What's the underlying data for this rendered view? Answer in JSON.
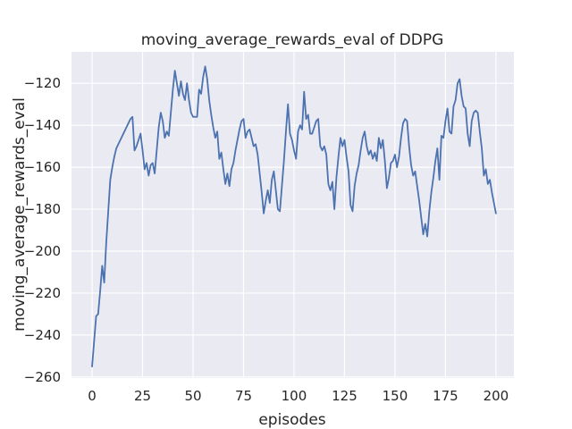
{
  "chart_data": {
    "type": "line",
    "title": "moving_average_rewards_eval of DDPG",
    "xlabel": "episodes",
    "ylabel": "moving_average_rewards_eval",
    "grid": true,
    "legend": "none",
    "background_color": "#EAEAF2",
    "gridline_color": "#ffffff",
    "line_color": "#4C72B0",
    "text_color": "#262626",
    "xlim": [
      -10.2,
      208.9
    ],
    "ylim": [
      -260.5,
      -105
    ],
    "x_ticks": [
      0,
      25,
      50,
      75,
      100,
      125,
      150,
      175,
      200
    ],
    "x_tick_labels": [
      "0",
      "25",
      "50",
      "75",
      "100",
      "125",
      "150",
      "175",
      "200"
    ],
    "y_ticks": [
      -120,
      -140,
      -160,
      -180,
      -200,
      -220,
      -240,
      -260
    ],
    "y_tick_labels": [
      "−120",
      "−140",
      "−160",
      "−180",
      "−200",
      "−220",
      "−240",
      "−260"
    ],
    "series": [
      {
        "name": "moving_average_rewards_eval",
        "x_start": 0,
        "x_step": 1,
        "values": [
          -255,
          -243,
          -231,
          -230,
          -219,
          -207,
          -215,
          -196,
          -181,
          -166,
          -160,
          -155,
          -151,
          -149,
          -147,
          -145,
          -143,
          -141,
          -139,
          -137,
          -136,
          -152,
          -150,
          -147,
          -144,
          -152,
          -161,
          -158,
          -164,
          -159,
          -158,
          -163,
          -152,
          -141,
          -134,
          -138,
          -146,
          -143,
          -145,
          -134,
          -123,
          -114,
          -120,
          -126,
          -119,
          -125,
          -128,
          -120,
          -128,
          -134,
          -136,
          -136,
          -136,
          -123,
          -125,
          -117,
          -112,
          -118,
          -128,
          -135,
          -141,
          -146,
          -143,
          -156,
          -153,
          -161,
          -168,
          -163,
          -169,
          -161,
          -158,
          -152,
          -147,
          -142,
          -138,
          -137,
          -146,
          -143,
          -142,
          -146,
          -150,
          -149,
          -154,
          -163,
          -172,
          -182,
          -176,
          -171,
          -177,
          -166,
          -162,
          -171,
          -180,
          -181,
          -169,
          -157,
          -143,
          -130,
          -144,
          -147,
          -152,
          -156,
          -143,
          -140,
          -142,
          -124,
          -137,
          -135,
          -144,
          -144,
          -141,
          -138,
          -137,
          -150,
          -152,
          -150,
          -154,
          -168,
          -171,
          -167,
          -180,
          -165,
          -155,
          -146,
          -150,
          -147,
          -155,
          -162,
          -178,
          -181,
          -169,
          -163,
          -159,
          -152,
          -146,
          -143,
          -150,
          -154,
          -152,
          -156,
          -153,
          -157,
          -146,
          -151,
          -147,
          -157,
          -170,
          -165,
          -158,
          -157,
          -154,
          -160,
          -155,
          -146,
          -139,
          -137,
          -138,
          -150,
          -159,
          -164,
          -162,
          -169,
          -176,
          -184,
          -192,
          -187,
          -193,
          -181,
          -172,
          -165,
          -157,
          -151,
          -166,
          -145,
          -146,
          -138,
          -132,
          -143,
          -144,
          -131,
          -128,
          -120,
          -118,
          -126,
          -131,
          -132,
          -144,
          -150,
          -138,
          -134,
          -133,
          -134,
          -143,
          -151,
          -164,
          -161,
          -168,
          -166,
          -172,
          -177,
          -182
        ]
      }
    ]
  }
}
